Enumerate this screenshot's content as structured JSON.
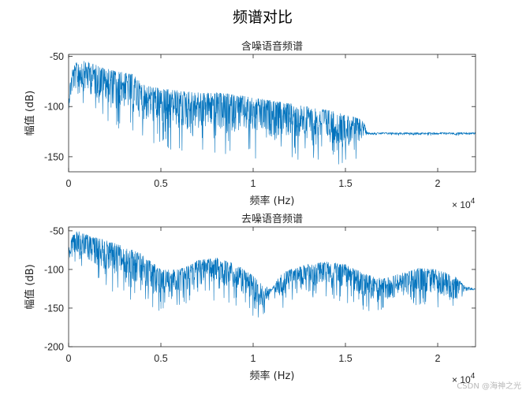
{
  "figure": {
    "title": "频谱对比",
    "watermark": "CSDN @海神之光"
  },
  "colors": {
    "line": "#0072BD",
    "axes": "#262626"
  },
  "chart_data": [
    {
      "type": "line",
      "title": "含噪语音频谱",
      "xlabel": "频率 (Hz)",
      "ylabel": "幅值 (dB)",
      "x_scale_label": "× 10^4",
      "x_scale_base": "10",
      "x_scale_exp": "4",
      "xlim": [
        0,
        22050
      ],
      "ylim": [
        -165,
        -48
      ],
      "xticks": [
        0,
        5000,
        10000,
        15000,
        20000
      ],
      "xtick_labels": [
        "0",
        "0.5",
        "1",
        "1.5",
        "2"
      ],
      "yticks": [
        -50,
        -100,
        -150
      ],
      "ytick_labels": [
        "-50",
        "-100",
        "-150"
      ],
      "grid": false,
      "series": [
        {
          "x": [
            0,
            200,
            500,
            1000,
            2000,
            3000,
            3500,
            4000,
            5000,
            6000,
            7000,
            8000,
            9000,
            10000,
            11000,
            12000,
            13000,
            14000,
            15000,
            15800,
            16000,
            16200,
            17000,
            18000,
            19000,
            20000,
            21000,
            22050
          ],
          "upper": [
            -85,
            -62,
            -54,
            -55,
            -62,
            -66,
            -68,
            -78,
            -82,
            -84,
            -86,
            -86,
            -88,
            -91,
            -94,
            -97,
            -100,
            -103,
            -108,
            -112,
            -116,
            -126,
            -126,
            -126,
            -126,
            -126,
            -126,
            -126
          ],
          "lower": [
            -115,
            -105,
            -100,
            -108,
            -118,
            -125,
            -128,
            -138,
            -142,
            -145,
            -147,
            -148,
            -150,
            -152,
            -154,
            -155,
            -156,
            -157,
            -158,
            -150,
            -135,
            -129,
            -129,
            -129,
            -129,
            -129,
            -129,
            -129
          ]
        }
      ]
    },
    {
      "type": "line",
      "title": "去噪语音频谱",
      "xlabel": "频率 (Hz)",
      "ylabel": "幅值 (dB)",
      "x_scale_label": "× 10^4",
      "x_scale_base": "10",
      "x_scale_exp": "4",
      "xlim": [
        0,
        22050
      ],
      "ylim": [
        -200,
        -45
      ],
      "xticks": [
        0,
        5000,
        10000,
        15000,
        20000
      ],
      "xtick_labels": [
        "0",
        "0.5",
        "1",
        "1.5",
        "2"
      ],
      "yticks": [
        -50,
        -100,
        -150,
        -200
      ],
      "ytick_labels": [
        "-50",
        "-100",
        "-150",
        "-200"
      ],
      "grid": false,
      "series": [
        {
          "x": [
            0,
            200,
            500,
            1000,
            2000,
            3000,
            4000,
            5000,
            6000,
            7000,
            8000,
            9000,
            10000,
            10500,
            11000,
            11500,
            12000,
            13000,
            14000,
            15000,
            16000,
            17000,
            18000,
            19000,
            20000,
            21000,
            21500,
            22050
          ],
          "upper": [
            -70,
            -55,
            -50,
            -55,
            -62,
            -70,
            -80,
            -100,
            -100,
            -88,
            -85,
            -92,
            -108,
            -120,
            -126,
            -105,
            -100,
            -93,
            -90,
            -93,
            -105,
            -112,
            -105,
            -98,
            -100,
            -110,
            -122,
            -125
          ],
          "lower": [
            -100,
            -95,
            -100,
            -110,
            -125,
            -138,
            -150,
            -155,
            -150,
            -142,
            -140,
            -148,
            -160,
            -170,
            -130,
            -152,
            -145,
            -140,
            -138,
            -142,
            -155,
            -160,
            -155,
            -150,
            -152,
            -160,
            -132,
            -127
          ]
        }
      ]
    }
  ]
}
